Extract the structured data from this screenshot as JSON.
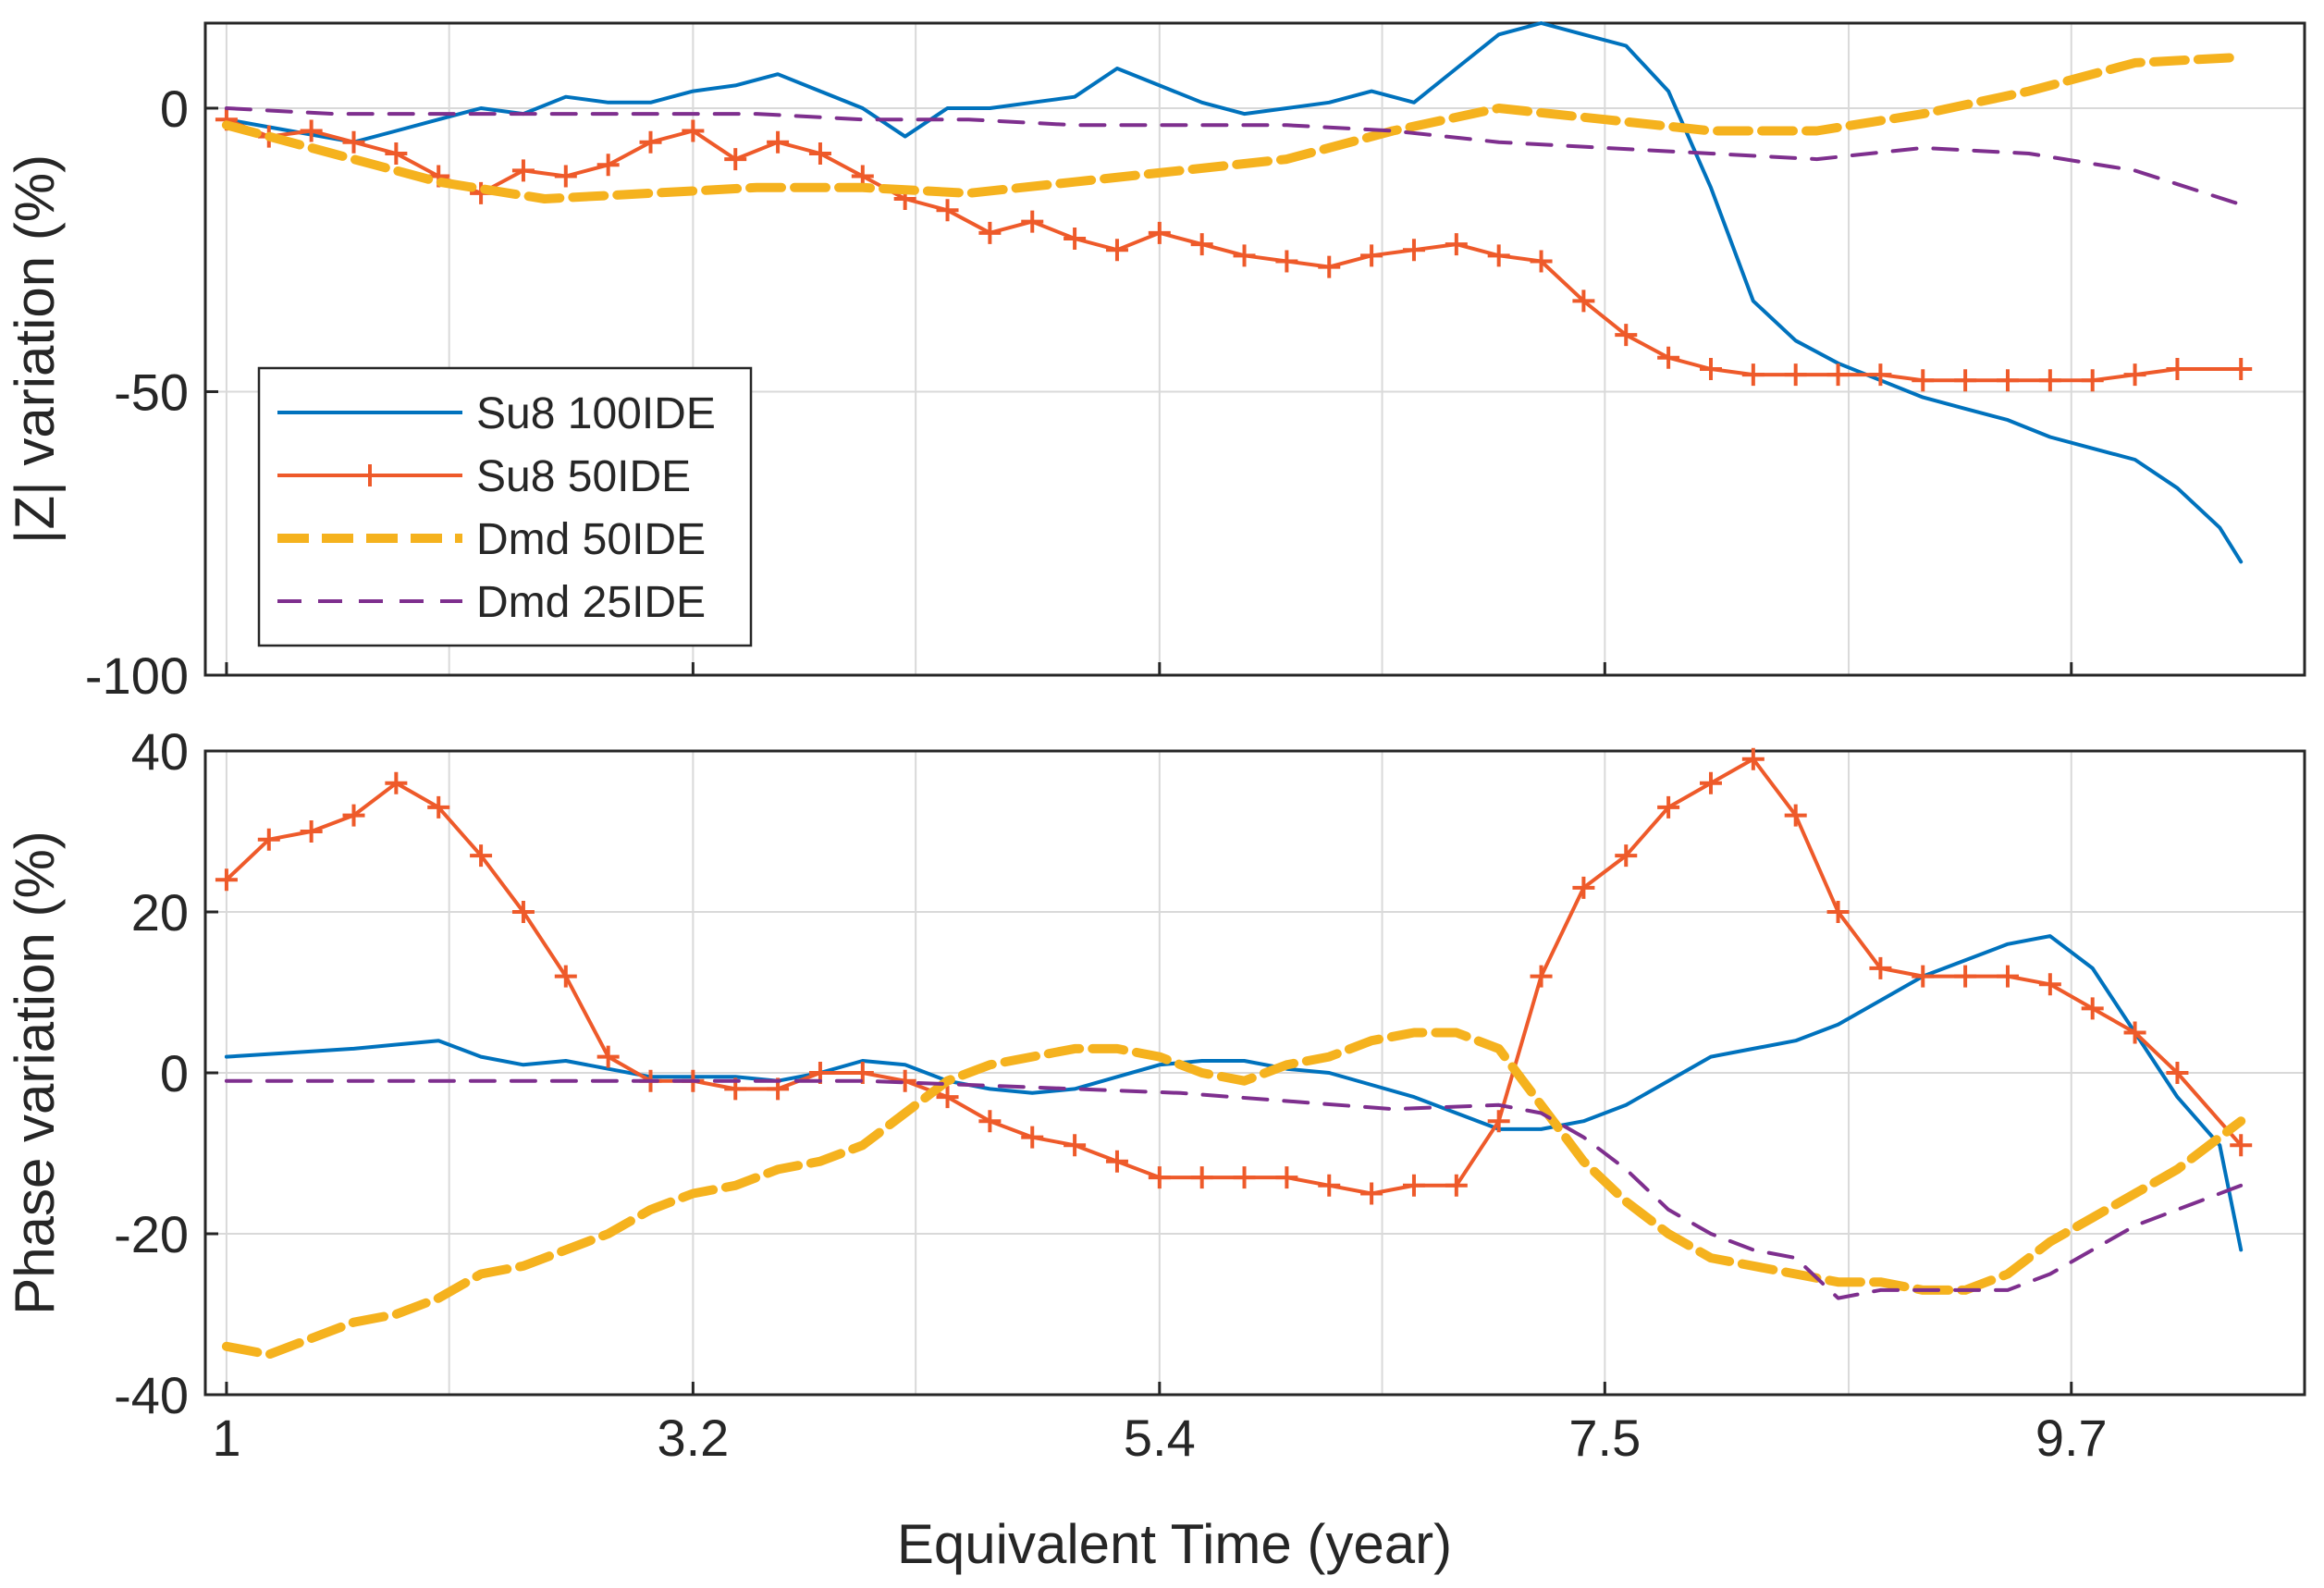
{
  "chart_data": {
    "type": "line",
    "xlabel": "Equivalent Time (year)",
    "x_ticks": [
      1,
      3.2,
      5.4,
      7.5,
      9.7
    ],
    "x_tick_labels": [
      "1",
      "3.2",
      "5.4",
      "7.5",
      "9.7"
    ],
    "xlim": [
      0.9,
      10.8
    ],
    "legend_location": "lower-left of top panel",
    "panels": [
      {
        "id": "top",
        "ylabel": "|Z| variation (%)",
        "ylim": [
          -100,
          15
        ],
        "y_ticks": [
          0,
          -50,
          -100
        ],
        "y_tick_labels": [
          "0",
          "-50",
          "-100"
        ],
        "grid": true,
        "series": [
          {
            "name": "Su8 100IDE",
            "color": "#0072BD",
            "style": "solid",
            "x": [
              1,
              1.3,
              1.6,
              1.8,
              2,
              2.2,
              2.4,
              2.6,
              2.8,
              3,
              3.2,
              3.4,
              3.6,
              3.8,
              4,
              4.2,
              4.4,
              4.6,
              4.8,
              5,
              5.2,
              5.4,
              5.6,
              5.8,
              6,
              6.2,
              6.4,
              6.6,
              6.8,
              7,
              7.2,
              7.4,
              7.6,
              7.8,
              8,
              8.2,
              8.4,
              8.6,
              8.8,
              9,
              9.2,
              9.4,
              9.6,
              9.8,
              10,
              10.2,
              10.4,
              10.5
            ],
            "y": [
              -2,
              -4,
              -6,
              -4,
              -2,
              0,
              -1,
              2,
              1,
              1,
              3,
              4,
              6,
              3,
              0,
              -5,
              0,
              0,
              1,
              2,
              7,
              4,
              1,
              -1,
              0,
              1,
              3,
              1,
              7,
              13,
              15,
              13,
              11,
              3,
              -14,
              -34,
              -41,
              -45,
              -48,
              -51,
              -53,
              -55,
              -58,
              -60,
              -62,
              -67,
              -74,
              -80
            ]
          },
          {
            "name": "Su8 50IDE",
            "color": "#EE5A2A",
            "style": "solid-plus",
            "x": [
              1,
              1.2,
              1.4,
              1.6,
              1.8,
              2,
              2.2,
              2.4,
              2.6,
              2.8,
              3,
              3.2,
              3.4,
              3.6,
              3.8,
              4,
              4.2,
              4.4,
              4.6,
              4.8,
              5,
              5.2,
              5.4,
              5.6,
              5.8,
              6,
              6.2,
              6.4,
              6.6,
              6.8,
              7,
              7.2,
              7.4,
              7.6,
              7.8,
              8,
              8.2,
              8.4,
              8.6,
              8.8,
              9,
              9.2,
              9.4,
              9.6,
              9.8,
              10,
              10.2,
              10.5
            ],
            "y": [
              -2,
              -5,
              -4,
              -6,
              -8,
              -12,
              -15,
              -11,
              -12,
              -10,
              -6,
              -4,
              -9,
              -6,
              -8,
              -12,
              -16,
              -18,
              -22,
              -20,
              -23,
              -25,
              -22,
              -24,
              -26,
              -27,
              -28,
              -26,
              -25,
              -24,
              -26,
              -27,
              -34,
              -40,
              -44,
              -46,
              -47,
              -47,
              -47,
              -47,
              -48,
              -48,
              -48,
              -48,
              -48,
              -47,
              -46,
              -46
            ]
          },
          {
            "name": "Dmd 50IDE",
            "color": "#F5B21E",
            "style": "dashed-thick",
            "x": [
              1,
              1.5,
              2,
              2.5,
              3,
              3.5,
              4,
              4.5,
              5,
              5.5,
              6,
              6.5,
              7,
              7.5,
              8,
              8.5,
              9,
              9.5,
              10,
              10.5
            ],
            "y": [
              -3,
              -8,
              -13,
              -16,
              -15,
              -14,
              -14,
              -15,
              -13,
              -11,
              -9,
              -4,
              0,
              -2,
              -4,
              -4,
              -1,
              3,
              8,
              9
            ]
          },
          {
            "name": "Dmd 25IDE",
            "color": "#7E2F8E",
            "style": "dashed-thin",
            "x": [
              1,
              1.5,
              2,
              2.5,
              3,
              3.5,
              4,
              4.5,
              5,
              5.5,
              6,
              6.5,
              7,
              7.5,
              8,
              8.5,
              9,
              9.5,
              10,
              10.5
            ],
            "y": [
              0,
              -1,
              -1,
              -1,
              -1,
              -1,
              -2,
              -2,
              -3,
              -3,
              -3,
              -4,
              -6,
              -7,
              -8,
              -9,
              -7,
              -8,
              -11,
              -17
            ]
          }
        ]
      },
      {
        "id": "bottom",
        "ylabel": "Phase variation (%)",
        "ylim": [
          -40,
          40
        ],
        "y_ticks": [
          40,
          20,
          0,
          -20,
          -40
        ],
        "y_tick_labels": [
          "40",
          "20",
          "0",
          "-20",
          "-40"
        ],
        "grid": true,
        "series": [
          {
            "name": "Su8 100IDE",
            "color": "#0072BD",
            "style": "solid",
            "x": [
              1,
              1.3,
              1.6,
              1.8,
              2,
              2.2,
              2.4,
              2.6,
              2.8,
              3,
              3.2,
              3.4,
              3.6,
              3.8,
              4,
              4.2,
              4.4,
              4.6,
              4.8,
              5,
              5.2,
              5.4,
              5.6,
              5.8,
              6,
              6.2,
              6.4,
              6.6,
              6.8,
              7,
              7.2,
              7.4,
              7.6,
              7.8,
              8,
              8.2,
              8.4,
              8.6,
              8.8,
              9,
              9.2,
              9.4,
              9.6,
              9.8,
              10,
              10.2,
              10.4,
              10.5
            ],
            "y": [
              2,
              2.5,
              3,
              3.5,
              4,
              2,
              1,
              1.5,
              0.5,
              -0.5,
              -0.5,
              -0.5,
              -1,
              0,
              1.5,
              1,
              -1,
              -2,
              -2.5,
              -2,
              -0.5,
              1,
              1.5,
              1.5,
              0.5,
              0,
              -1.5,
              -3,
              -5,
              -7,
              -7,
              -6,
              -4,
              -1,
              2,
              3,
              4,
              6,
              9,
              12,
              14,
              16,
              17,
              13,
              5,
              -3,
              -9,
              -22
            ]
          },
          {
            "name": "Su8 50IDE",
            "color": "#EE5A2A",
            "style": "solid-plus",
            "x": [
              1,
              1.2,
              1.4,
              1.6,
              1.8,
              2,
              2.2,
              2.4,
              2.6,
              2.8,
              3,
              3.2,
              3.4,
              3.6,
              3.8,
              4,
              4.2,
              4.4,
              4.6,
              4.8,
              5,
              5.2,
              5.4,
              5.6,
              5.8,
              6,
              6.2,
              6.4,
              6.6,
              6.8,
              7,
              7.2,
              7.4,
              7.6,
              7.8,
              8,
              8.2,
              8.4,
              8.6,
              8.8,
              9,
              9.2,
              9.4,
              9.6,
              9.8,
              10,
              10.2,
              10.5
            ],
            "y": [
              24,
              29,
              30,
              32,
              36,
              33,
              27,
              20,
              12,
              2,
              -1,
              -1,
              -2,
              -2,
              0,
              0,
              -1,
              -3,
              -6,
              -8,
              -9,
              -11,
              -13,
              -13,
              -13,
              -13,
              -14,
              -15,
              -14,
              -14,
              -6,
              12,
              23,
              27,
              33,
              36,
              39,
              32,
              20,
              13,
              12,
              12,
              12,
              11,
              8,
              5,
              0,
              -9
            ]
          },
          {
            "name": "Dmd 50IDE",
            "color": "#F5B21E",
            "style": "dashed-thick",
            "x": [
              1,
              1.2,
              1.4,
              1.6,
              1.8,
              2,
              2.2,
              2.4,
              2.6,
              2.8,
              3,
              3.2,
              3.4,
              3.6,
              3.8,
              4,
              4.2,
              4.4,
              4.6,
              4.8,
              5,
              5.2,
              5.4,
              5.6,
              5.8,
              6,
              6.2,
              6.4,
              6.6,
              6.8,
              7,
              7.2,
              7.4,
              7.6,
              7.8,
              8,
              8.2,
              8.4,
              8.6,
              8.8,
              9,
              9.2,
              9.4,
              9.6,
              9.8,
              10,
              10.2,
              10.5
            ],
            "y": [
              -34,
              -35,
              -33,
              -31,
              -30,
              -28,
              -25,
              -24,
              -22,
              -20,
              -17,
              -15,
              -14,
              -12,
              -11,
              -9,
              -5,
              -1,
              1,
              2,
              3,
              3,
              2,
              0,
              -1,
              1,
              2,
              4,
              5,
              5,
              3,
              -4,
              -11,
              -16,
              -20,
              -23,
              -24,
              -25,
              -26,
              -26,
              -27,
              -27,
              -25,
              -21,
              -18,
              -15,
              -12,
              -6
            ]
          },
          {
            "name": "Dmd 25IDE",
            "color": "#7E2F8E",
            "style": "dashed-thin",
            "x": [
              1,
              1.5,
              2,
              2.5,
              3,
              3.5,
              4,
              4.5,
              5,
              5.5,
              6,
              6.5,
              7,
              7.2,
              7.4,
              7.6,
              7.8,
              8,
              8.2,
              8.4,
              8.6,
              8.8,
              9,
              9.2,
              9.4,
              9.6,
              9.8,
              10,
              10.2,
              10.5
            ],
            "y": [
              -1,
              -1,
              -1,
              -1,
              -1,
              -1,
              -1,
              -1.5,
              -2,
              -2.5,
              -3.5,
              -4.5,
              -4,
              -5,
              -8,
              -12,
              -17,
              -20,
              -22,
              -23,
              -28,
              -27,
              -27,
              -27,
              -27,
              -25,
              -22,
              -19,
              -17,
              -14
            ]
          }
        ]
      }
    ]
  },
  "legend": {
    "items": [
      {
        "label": "Su8 100IDE",
        "color": "#0072BD",
        "style": "solid"
      },
      {
        "label": "Su8 50IDE",
        "color": "#EE5A2A",
        "style": "solid-plus"
      },
      {
        "label": "Dmd 50IDE",
        "color": "#F5B21E",
        "style": "dashed-thick"
      },
      {
        "label": "Dmd 25IDE",
        "color": "#7E2F8E",
        "style": "dashed-thin"
      }
    ]
  }
}
